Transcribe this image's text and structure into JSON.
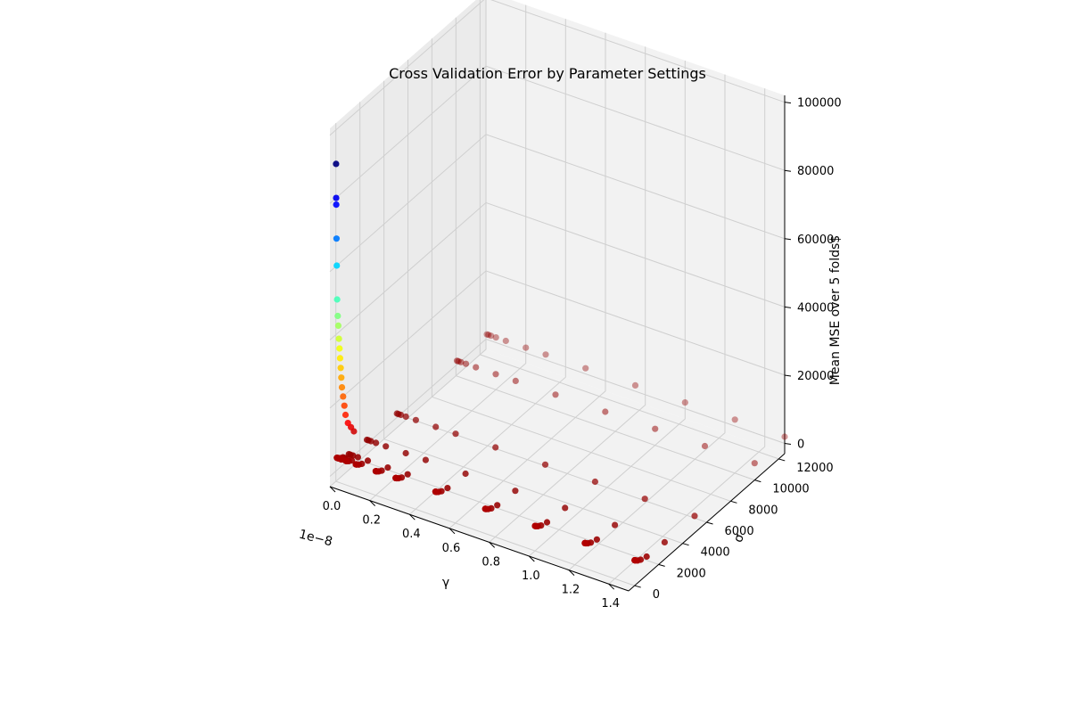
{
  "chart_data": {
    "type": "scatter",
    "projection": "3d",
    "title": "Cross Validation Error by Parameter Settings",
    "xlabel": "γ",
    "ylabel": "σ",
    "zlabel": "Mean MSE over 5 folds$",
    "x_offset_label": "1e−8",
    "x_ticks": [
      "0.0",
      "0.2",
      "0.4",
      "0.6",
      "0.8",
      "1.0",
      "1.2",
      "1.4"
    ],
    "y_ticks": [
      "0",
      "2000",
      "4000",
      "6000",
      "8000",
      "10000",
      "12000"
    ],
    "z_ticks": [
      "0",
      "20000",
      "40000",
      "60000",
      "80000",
      "100000"
    ],
    "x_unit": "1e-8",
    "xlim": [
      0.0,
      1.5
    ],
    "ylim": [
      -500,
      12500
    ],
    "zlim": [
      -3000,
      102000
    ],
    "grid": true,
    "colormap": "jet_r",
    "pane_color": "#f2f2f2",
    "gamma_values": [
      0.005,
      0.0125,
      0.025,
      0.05,
      0.1,
      0.2,
      0.3,
      0.5,
      0.75,
      1.0,
      1.25,
      1.5
    ],
    "sigma_values": [
      1,
      5,
      10,
      25,
      50,
      100,
      250,
      500,
      1000,
      2500,
      5000,
      10000,
      12500
    ],
    "ridge_points": [
      {
        "gamma": 0.0,
        "sigma": 10,
        "mse": 90000
      },
      {
        "gamma": 0.0,
        "sigma": 20,
        "mse": 80000
      },
      {
        "gamma": 0.0,
        "sigma": 30,
        "mse": 78000
      },
      {
        "gamma": 0.0,
        "sigma": 50,
        "mse": 68000
      },
      {
        "gamma": 0.0,
        "sigma": 75,
        "mse": 60000
      },
      {
        "gamma": 0.0,
        "sigma": 100,
        "mse": 50000
      },
      {
        "gamma": 0.0,
        "sigma": 150,
        "mse": 45000
      },
      {
        "gamma": 0.0,
        "sigma": 200,
        "mse": 42000
      },
      {
        "gamma": 0.0,
        "sigma": 250,
        "mse": 38000
      },
      {
        "gamma": 0.0,
        "sigma": 300,
        "mse": 35000
      },
      {
        "gamma": 0.0,
        "sigma": 350,
        "mse": 32000
      },
      {
        "gamma": 0.0,
        "sigma": 400,
        "mse": 29000
      },
      {
        "gamma": 0.0,
        "sigma": 450,
        "mse": 26000
      },
      {
        "gamma": 0.0,
        "sigma": 500,
        "mse": 23000
      },
      {
        "gamma": 0.0,
        "sigma": 600,
        "mse": 20000
      },
      {
        "gamma": 0.0,
        "sigma": 700,
        "mse": 17000
      },
      {
        "gamma": 0.0,
        "sigma": 800,
        "mse": 14000
      },
      {
        "gamma": 0.0,
        "sigma": 1000,
        "mse": 11000
      },
      {
        "gamma": 0.0,
        "sigma": 1250,
        "mse": 9000
      },
      {
        "gamma": 0.0,
        "sigma": 1500,
        "mse": 7000
      }
    ]
  }
}
